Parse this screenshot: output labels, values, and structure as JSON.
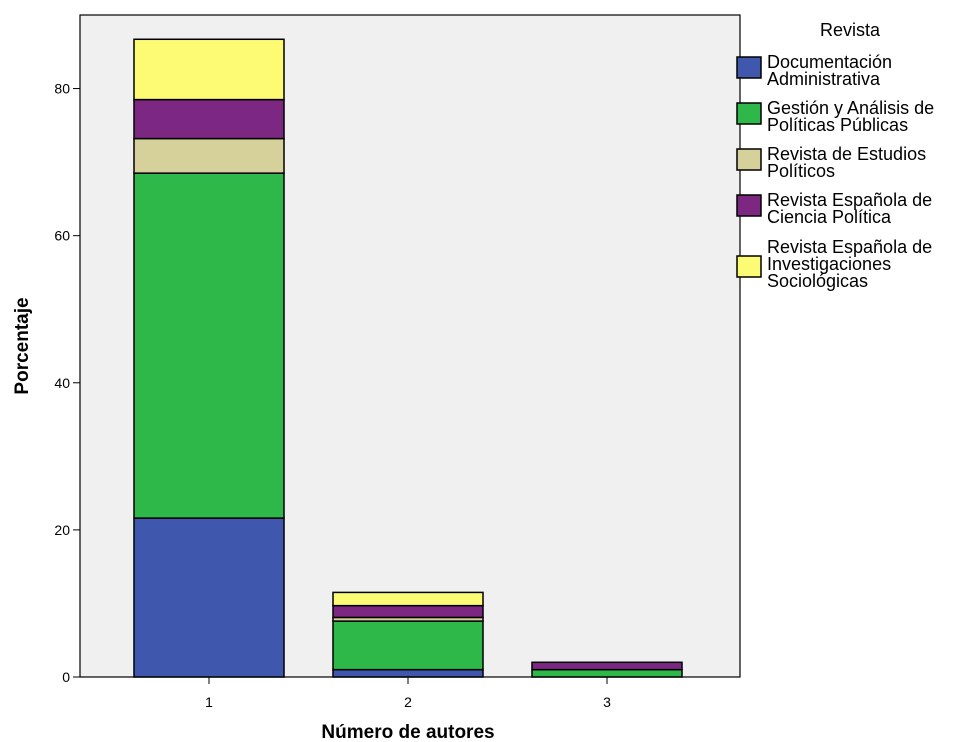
{
  "chart_data": {
    "type": "bar",
    "stacked": true,
    "categories": [
      "1",
      "2",
      "3"
    ],
    "xlabel": "Número de autores",
    "ylabel": "Porcentaje",
    "ylim": [
      0,
      90
    ],
    "yticks": [
      0,
      20,
      40,
      60,
      80
    ],
    "grid": false,
    "legend_title": "Revista",
    "legend_position": "right",
    "plot_background": "#f0f0f0",
    "series": [
      {
        "name": "Documentación Administrativa",
        "legend_lines": [
          "Documentación",
          "Administrativa"
        ],
        "color": "#3f58ad",
        "values": [
          21.6,
          1.0,
          0.0
        ]
      },
      {
        "name": "Gestión y Análisis de Políticas Públicas",
        "legend_lines": [
          "Gestión y Análisis de",
          "Políticas Públicas"
        ],
        "color": "#2eb84a",
        "values": [
          46.9,
          6.6,
          1.0
        ]
      },
      {
        "name": "Revista de Estudios Políticos",
        "legend_lines": [
          "Revista de Estudios",
          "Políticos"
        ],
        "color": "#d6d09a",
        "values": [
          4.7,
          0.5,
          0.0
        ]
      },
      {
        "name": "Revista Española de Ciencia Política",
        "legend_lines": [
          "Revista Española de",
          "Ciencia Política"
        ],
        "color": "#7c2882",
        "values": [
          5.3,
          1.6,
          1.0
        ]
      },
      {
        "name": "Revista Española de Investigaciones Sociológicas",
        "legend_lines": [
          "Revista Española de",
          "Investigaciones",
          "Sociológicas"
        ],
        "color": "#fdfa73",
        "values": [
          8.2,
          1.8,
          0.0
        ]
      }
    ]
  }
}
